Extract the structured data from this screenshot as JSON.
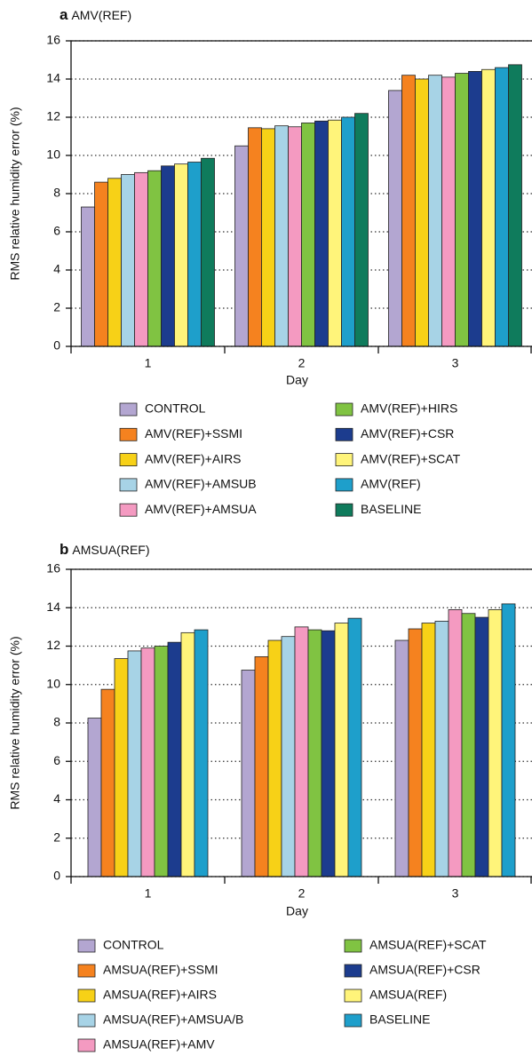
{
  "chart_data": [
    {
      "type": "bar",
      "panel_label": "a",
      "title": "AMV(REF)",
      "y_label": "RMS relative humidity error (%)",
      "x_label": "Day",
      "categories": [
        "1",
        "2",
        "3"
      ],
      "ylim": [
        0,
        16
      ],
      "yticks": [
        0,
        2,
        4,
        6,
        8,
        10,
        12,
        14,
        16
      ],
      "grid": true,
      "series": [
        {
          "name": "CONTROL",
          "color": "#b3a6d1",
          "values": [
            7.3,
            10.5,
            13.4
          ]
        },
        {
          "name": "AMV(REF)+SSMI",
          "color": "#f5821f",
          "values": [
            8.6,
            11.45,
            14.2
          ]
        },
        {
          "name": "AMV(REF)+AIRS",
          "color": "#f7d117",
          "values": [
            8.8,
            11.4,
            14.0
          ]
        },
        {
          "name": "AMV(REF)+AMSUB",
          "color": "#a7d3e6",
          "values": [
            9.0,
            11.55,
            14.2
          ]
        },
        {
          "name": "AMV(REF)+AMSUA",
          "color": "#f49ac1",
          "values": [
            9.1,
            11.5,
            14.1
          ]
        },
        {
          "name": "AMV(REF)+HIRS",
          "color": "#80c342",
          "values": [
            9.2,
            11.7,
            14.3
          ]
        },
        {
          "name": "AMV(REF)+CSR",
          "color": "#1c3c8e",
          "values": [
            9.45,
            11.8,
            14.4
          ]
        },
        {
          "name": "AMV(REF)+SCAT",
          "color": "#fff47a",
          "values": [
            9.55,
            11.85,
            14.5
          ]
        },
        {
          "name": "AMV(REF)",
          "color": "#1e9fcb",
          "values": [
            9.65,
            12.0,
            14.6
          ]
        },
        {
          "name": "BASELINE",
          "color": "#0f7b5c",
          "values": [
            9.85,
            12.2,
            14.75
          ]
        }
      ]
    },
    {
      "type": "bar",
      "panel_label": "b",
      "title": "AMSUA(REF)",
      "y_label": "RMS relative humidity error (%)",
      "x_label": "Day",
      "categories": [
        "1",
        "2",
        "3"
      ],
      "ylim": [
        0,
        16
      ],
      "yticks": [
        0,
        2,
        4,
        6,
        8,
        10,
        12,
        14,
        16
      ],
      "grid": true,
      "series": [
        {
          "name": "CONTROL",
          "color": "#b3a6d1",
          "values": [
            8.25,
            10.75,
            12.3
          ]
        },
        {
          "name": "AMSUA(REF)+SSMI",
          "color": "#f5821f",
          "values": [
            9.75,
            11.45,
            12.9
          ]
        },
        {
          "name": "AMSUA(REF)+AIRS",
          "color": "#f7d117",
          "values": [
            11.35,
            12.3,
            13.2
          ]
        },
        {
          "name": "AMSUA(REF)+AMSUA/B",
          "color": "#a7d3e6",
          "values": [
            11.75,
            12.5,
            13.3
          ]
        },
        {
          "name": "AMSUA(REF)+AMV",
          "color": "#f49ac1",
          "values": [
            11.9,
            13.0,
            13.9
          ]
        },
        {
          "name": "AMSUA(REF)+SCAT",
          "color": "#80c342",
          "values": [
            12.0,
            12.85,
            13.7
          ]
        },
        {
          "name": "AMSUA(REF)+CSR",
          "color": "#1c3c8e",
          "values": [
            12.2,
            12.8,
            13.5
          ]
        },
        {
          "name": "AMSUA(REF)",
          "color": "#fff47a",
          "values": [
            12.7,
            13.2,
            13.9
          ]
        },
        {
          "name": "BASELINE",
          "color": "#1e9fcb",
          "values": [
            12.85,
            13.45,
            14.2
          ]
        }
      ]
    }
  ]
}
